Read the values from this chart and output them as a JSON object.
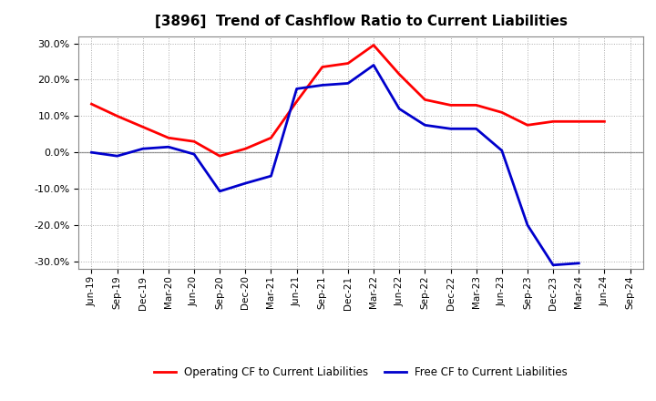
{
  "title": "[3896]  Trend of Cashflow Ratio to Current Liabilities",
  "x_labels": [
    "Jun-19",
    "Sep-19",
    "Dec-19",
    "Mar-20",
    "Jun-20",
    "Sep-20",
    "Dec-20",
    "Mar-21",
    "Jun-21",
    "Sep-21",
    "Dec-21",
    "Mar-22",
    "Jun-22",
    "Sep-22",
    "Dec-22",
    "Mar-23",
    "Jun-23",
    "Sep-23",
    "Dec-23",
    "Mar-24",
    "Jun-24",
    "Sep-24"
  ],
  "operating_cf": [
    0.133,
    0.1,
    0.07,
    0.04,
    0.03,
    -0.01,
    0.01,
    0.04,
    0.14,
    0.235,
    0.245,
    0.295,
    0.215,
    0.145,
    0.13,
    0.13,
    0.11,
    0.075,
    0.085,
    0.085,
    0.085,
    null
  ],
  "free_cf": [
    0.0,
    -0.01,
    0.01,
    0.015,
    -0.005,
    -0.107,
    -0.085,
    -0.065,
    0.175,
    0.185,
    0.19,
    0.24,
    0.12,
    0.075,
    0.065,
    0.065,
    0.005,
    -0.2,
    -0.31,
    -0.305,
    null,
    null
  ],
  "operating_cf_color": "#FF0000",
  "free_cf_color": "#0000CC",
  "background_color": "#FFFFFF",
  "plot_bg_color": "#FFFFFF",
  "grid_color": "#AAAAAA",
  "ylim": [
    -0.32,
    0.32
  ],
  "yticks": [
    -0.3,
    -0.2,
    -0.1,
    0.0,
    0.1,
    0.2,
    0.3
  ],
  "legend_labels": [
    "Operating CF to Current Liabilities",
    "Free CF to Current Liabilities"
  ],
  "line_width": 2.0
}
